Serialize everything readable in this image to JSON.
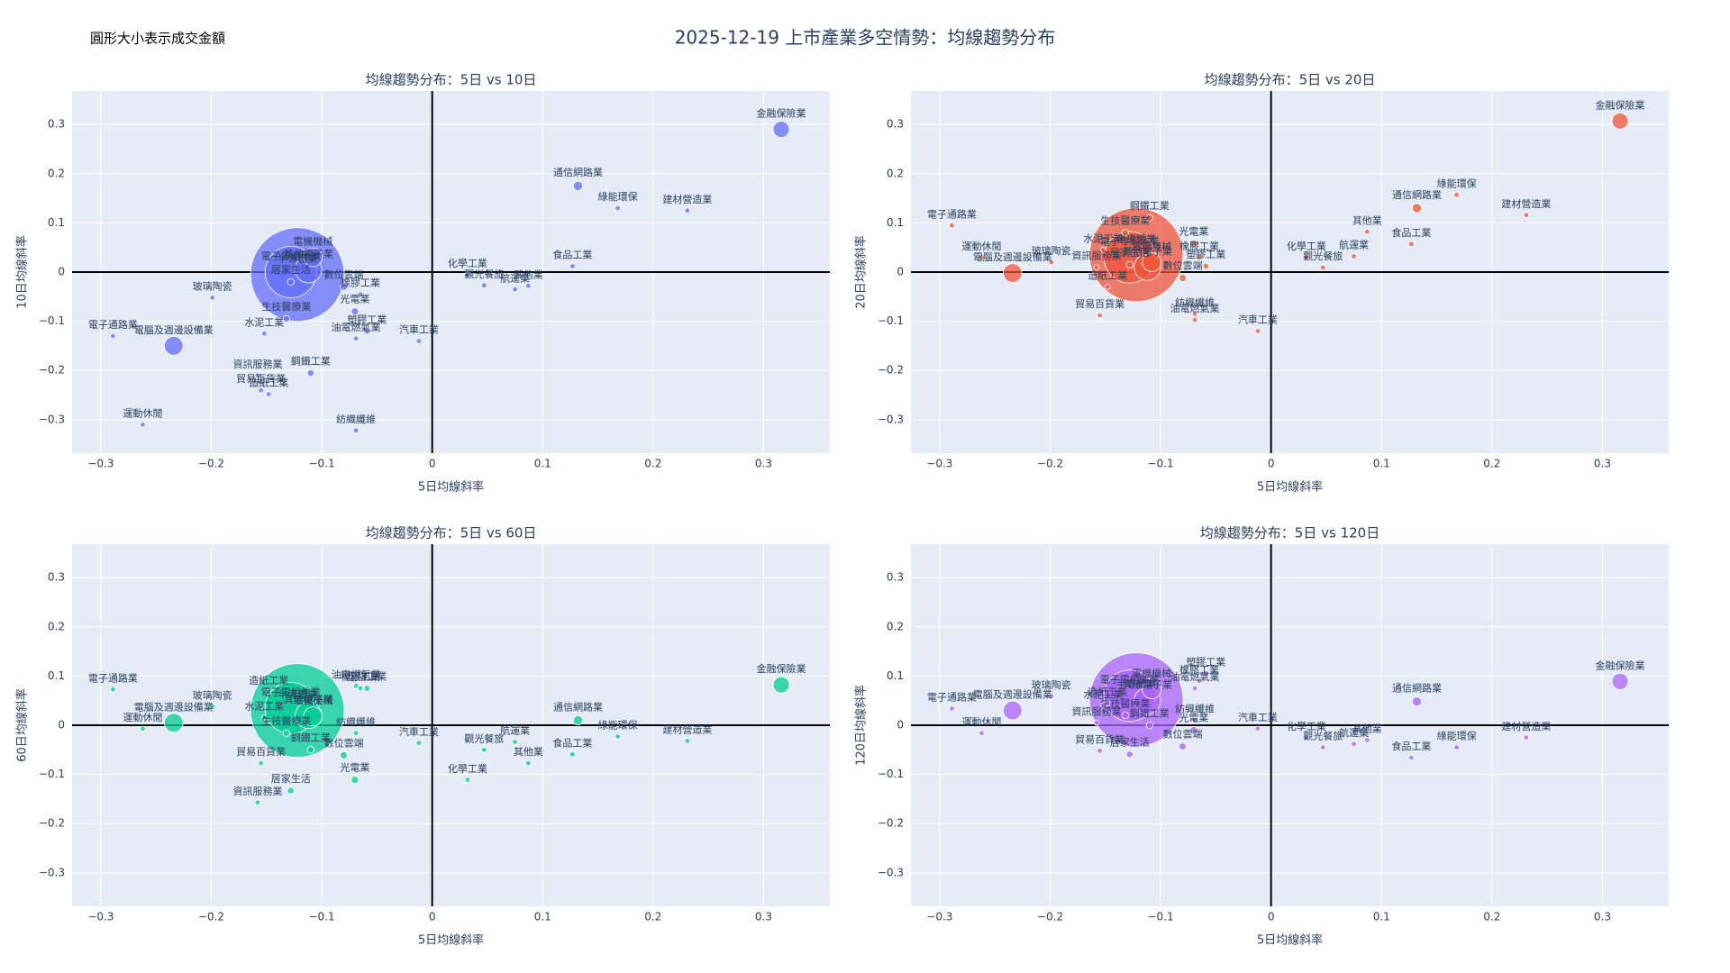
{
  "title": "2025-12-19 上市產業多空情勢：均線趨勢分布",
  "note": "圓形大小表示成交金額",
  "chart_data": [
    {
      "type": "scatter",
      "title": "均線趨勢分布：5日 vs 10日",
      "x_label": "5日均線斜率",
      "y_label": "10日均線斜率",
      "color": "#636efa",
      "grid": true,
      "xlim": [
        -0.326,
        0.36
      ],
      "ylim": [
        -0.368,
        0.368
      ],
      "xticks": [
        {
          "value": -0.3,
          "label": "−0.3"
        },
        {
          "value": -0.2,
          "label": "−0.2"
        },
        {
          "value": -0.1,
          "label": "−0.1"
        },
        0,
        0.1,
        0.2,
        0.3
      ],
      "yticks": [
        {
          "value": -0.3,
          "label": "−0.3"
        },
        {
          "value": -0.2,
          "label": "−0.2"
        },
        {
          "value": -0.1,
          "label": "−0.1"
        },
        0,
        0.1,
        0.2,
        0.3
      ],
      "labels": [
        "金融保險業",
        "通信網路業",
        "綠能環保",
        "建材營造業",
        "食品工業",
        "化學工業",
        "觀光餐旅",
        "航運業",
        "其他業",
        "汽車工業",
        "半導體業",
        "電機機械",
        "電子零組件業",
        "其他電子業",
        "居家生活",
        "電腦及週邊設備業",
        "電子通路業",
        "玻璃陶瓷",
        "水泥工業",
        "生技醫療業",
        "資訊服務業",
        "鋼鐵工業",
        "貿易百貨業",
        "造紙工業",
        "運動休閒",
        "紡織纖維",
        "油電燃氣業",
        "塑膠工業",
        "光電業",
        "橡膠工業",
        "數位雲端"
      ],
      "x": [
        0.316,
        0.132,
        0.168,
        0.231,
        0.127,
        0.032,
        0.047,
        0.075,
        0.087,
        -0.012,
        -0.122,
        -0.108,
        -0.128,
        -0.112,
        -0.128,
        -0.234,
        -0.289,
        -0.199,
        -0.152,
        -0.132,
        -0.158,
        -0.11,
        -0.155,
        -0.148,
        -0.262,
        -0.069,
        -0.069,
        -0.059,
        -0.07,
        -0.065,
        -0.08
      ],
      "y": [
        0.29,
        0.175,
        0.13,
        0.125,
        0.012,
        -0.005,
        -0.027,
        -0.035,
        -0.028,
        -0.14,
        -0.005,
        0.03,
        0.0,
        0.005,
        -0.02,
        -0.15,
        -0.13,
        -0.052,
        -0.125,
        -0.095,
        -0.21,
        -0.205,
        -0.24,
        -0.248,
        -0.31,
        -0.322,
        -0.135,
        -0.12,
        -0.08,
        -0.045,
        -0.03
      ],
      "sizes": [
        3,
        1,
        0.3,
        0.3,
        0.3,
        0.3,
        0.3,
        0.3,
        0.3,
        0.3,
        100,
        4,
        30,
        8,
        0.5,
        4,
        0.3,
        0.3,
        0.3,
        0.5,
        0.3,
        0.5,
        0.3,
        0.3,
        0.3,
        0.3,
        0.3,
        0.4,
        0.6,
        0.3,
        0.6
      ]
    },
    {
      "type": "scatter",
      "title": "均線趨勢分布：5日 vs 20日",
      "x_label": "5日均線斜率",
      "y_label": "20日均線斜率",
      "color": "#ef553b",
      "grid": true,
      "xlim": [
        -0.326,
        0.36
      ],
      "ylim": [
        -0.368,
        0.368
      ],
      "xticks": [
        {
          "value": -0.3,
          "label": "−0.3"
        },
        {
          "value": -0.2,
          "label": "−0.2"
        },
        {
          "value": -0.1,
          "label": "−0.1"
        },
        0,
        0.1,
        0.2,
        0.3
      ],
      "yticks": [
        {
          "value": -0.3,
          "label": "−0.3"
        },
        {
          "value": -0.2,
          "label": "−0.2"
        },
        {
          "value": -0.1,
          "label": "−0.1"
        },
        0,
        0.1,
        0.2,
        0.3
      ],
      "labels": [
        "金融保險業",
        "通信網路業",
        "綠能環保",
        "建材營造業",
        "食品工業",
        "化學工業",
        "觀光餐旅",
        "航運業",
        "其他業",
        "汽車工業",
        "半導體業",
        "電機機械",
        "電子零組件業",
        "其他電子業",
        "居家生活",
        "電腦及週邊設備業",
        "電子通路業",
        "玻璃陶瓷",
        "水泥工業",
        "生技醫療業",
        "資訊服務業",
        "鋼鐵工業",
        "貿易百貨業",
        "造紙工業",
        "運動休閒",
        "紡織纖維",
        "油電燃氣業",
        "塑膠工業",
        "光電業",
        "橡膠工業",
        "數位雲端"
      ],
      "x": [
        0.316,
        0.132,
        0.168,
        0.231,
        0.127,
        0.032,
        0.047,
        0.075,
        0.087,
        -0.012,
        -0.122,
        -0.108,
        -0.128,
        -0.112,
        -0.128,
        -0.234,
        -0.289,
        -0.199,
        -0.152,
        -0.132,
        -0.158,
        -0.11,
        -0.155,
        -0.148,
        -0.262,
        -0.069,
        -0.069,
        -0.059,
        -0.07,
        -0.065,
        -0.08
      ],
      "y": [
        0.307,
        0.13,
        0.157,
        0.116,
        0.057,
        0.03,
        0.009,
        0.032,
        0.082,
        -0.12,
        0.035,
        0.02,
        0.03,
        0.01,
        0.015,
        -0.002,
        0.095,
        0.02,
        0.045,
        0.08,
        0.01,
        0.11,
        -0.088,
        -0.03,
        0.03,
        -0.085,
        -0.097,
        0.012,
        0.058,
        0.03,
        -0.012
      ],
      "sizes": [
        3,
        1,
        0.3,
        0.3,
        0.3,
        0.3,
        0.3,
        0.3,
        0.3,
        0.3,
        100,
        4,
        30,
        8,
        0.5,
        4,
        0.3,
        0.3,
        0.3,
        0.5,
        0.3,
        0.5,
        0.3,
        0.3,
        0.3,
        0.3,
        0.3,
        0.4,
        0.6,
        0.3,
        0.6
      ]
    },
    {
      "type": "scatter",
      "title": "均線趨勢分布：5日 vs 60日",
      "x_label": "5日均線斜率",
      "y_label": "60日均線斜率",
      "color": "#00cc96",
      "grid": true,
      "xlim": [
        -0.326,
        0.36
      ],
      "ylim": [
        -0.368,
        0.368
      ],
      "xticks": [
        {
          "value": -0.3,
          "label": "−0.3"
        },
        {
          "value": -0.2,
          "label": "−0.2"
        },
        {
          "value": -0.1,
          "label": "−0.1"
        },
        0,
        0.1,
        0.2,
        0.3
      ],
      "yticks": [
        {
          "value": -0.3,
          "label": "−0.3"
        },
        {
          "value": -0.2,
          "label": "−0.2"
        },
        {
          "value": -0.1,
          "label": "−0.1"
        },
        0,
        0.1,
        0.2,
        0.3
      ],
      "labels": [
        "金融保險業",
        "通信網路業",
        "綠能環保",
        "建材營造業",
        "食品工業",
        "化學工業",
        "觀光餐旅",
        "航運業",
        "其他業",
        "汽車工業",
        "半導體業",
        "電機機械",
        "電子零組件業",
        "其他電子業",
        "居家生活",
        "電腦及週邊設備業",
        "電子通路業",
        "玻璃陶瓷",
        "水泥工業",
        "生技醫療業",
        "資訊服務業",
        "鋼鐵工業",
        "貿易百貨業",
        "造紙工業",
        "運動休閒",
        "紡織纖維",
        "油電燃氣業",
        "塑膠工業",
        "光電業",
        "橡膠工業",
        "數位雲端"
      ],
      "x": [
        0.316,
        0.132,
        0.168,
        0.231,
        0.127,
        0.032,
        0.047,
        0.075,
        0.087,
        -0.012,
        -0.122,
        -0.108,
        -0.128,
        -0.112,
        -0.128,
        -0.234,
        -0.289,
        -0.199,
        -0.152,
        -0.132,
        -0.158,
        -0.11,
        -0.155,
        -0.148,
        -0.262,
        -0.069,
        -0.069,
        -0.059,
        -0.07,
        -0.065,
        -0.08
      ],
      "y": [
        0.082,
        0.01,
        -0.023,
        -0.032,
        -0.059,
        -0.111,
        -0.05,
        -0.034,
        -0.077,
        -0.036,
        0.03,
        0.018,
        0.035,
        0.02,
        -0.133,
        0.005,
        0.073,
        0.038,
        0.016,
        -0.016,
        -0.157,
        -0.05,
        -0.077,
        0.068,
        -0.007,
        -0.016,
        0.08,
        0.075,
        -0.111,
        0.075,
        -0.061
      ],
      "sizes": [
        3,
        1,
        0.3,
        0.3,
        0.3,
        0.3,
        0.3,
        0.3,
        0.3,
        0.3,
        100,
        4,
        30,
        8,
        0.5,
        4,
        0.3,
        0.3,
        0.3,
        0.5,
        0.3,
        0.5,
        0.3,
        0.3,
        0.3,
        0.3,
        0.3,
        0.4,
        0.6,
        0.3,
        0.6
      ]
    },
    {
      "type": "scatter",
      "title": "均線趨勢分布：5日 vs 120日",
      "x_label": "5日均線斜率",
      "y_label": "120日均線斜率",
      "color": "#ab63fa",
      "grid": true,
      "xlim": [
        -0.326,
        0.36
      ],
      "ylim": [
        -0.368,
        0.368
      ],
      "xticks": [
        {
          "value": -0.3,
          "label": "−0.3"
        },
        {
          "value": -0.2,
          "label": "−0.2"
        },
        {
          "value": -0.1,
          "label": "−0.1"
        },
        0,
        0.1,
        0.2,
        0.3
      ],
      "yticks": [
        {
          "value": -0.3,
          "label": "−0.3"
        },
        {
          "value": -0.2,
          "label": "−0.2"
        },
        {
          "value": -0.1,
          "label": "−0.1"
        },
        0,
        0.1,
        0.2,
        0.3
      ],
      "labels": [
        "金融保險業",
        "通信網路業",
        "綠能環保",
        "建材營造業",
        "食品工業",
        "化學工業",
        "觀光餐旅",
        "航運業",
        "其他業",
        "汽車工業",
        "半導體業",
        "電機機械",
        "電子零組件業",
        "其他電子業",
        "居家生活",
        "電腦及週邊設備業",
        "電子通路業",
        "玻璃陶瓷",
        "水泥工業",
        "生技醫療業",
        "資訊服務業",
        "鋼鐵工業",
        "貿易百貨業",
        "造紙工業",
        "運動休閒",
        "紡織纖維",
        "油電燃氣業",
        "塑膠工業",
        "光電業",
        "橡膠工業",
        "數位雲端"
      ],
      "x": [
        0.316,
        0.132,
        0.168,
        0.231,
        0.127,
        0.032,
        0.047,
        0.075,
        0.087,
        -0.012,
        -0.122,
        -0.108,
        -0.128,
        -0.112,
        -0.128,
        -0.234,
        -0.289,
        -0.199,
        -0.152,
        -0.132,
        -0.158,
        -0.11,
        -0.155,
        -0.148,
        -0.262,
        -0.069,
        -0.069,
        -0.059,
        -0.07,
        -0.065,
        -0.08
      ],
      "y": [
        0.089,
        0.048,
        -0.045,
        -0.025,
        -0.066,
        -0.025,
        -0.045,
        -0.038,
        -0.03,
        -0.007,
        0.052,
        0.073,
        0.06,
        0.05,
        -0.059,
        0.03,
        0.034,
        0.059,
        0.04,
        0.02,
        0.005,
        0.0,
        -0.052,
        0.045,
        -0.016,
        0.01,
        0.075,
        0.105,
        -0.01,
        0.09,
        -0.043
      ],
      "sizes": [
        3,
        1,
        0.3,
        0.3,
        0.3,
        0.3,
        0.3,
        0.3,
        0.3,
        0.3,
        100,
        4,
        30,
        8,
        0.5,
        4,
        0.3,
        0.3,
        0.3,
        0.5,
        0.3,
        0.5,
        0.3,
        0.3,
        0.3,
        0.3,
        0.3,
        0.4,
        0.6,
        0.3,
        0.6
      ]
    }
  ]
}
